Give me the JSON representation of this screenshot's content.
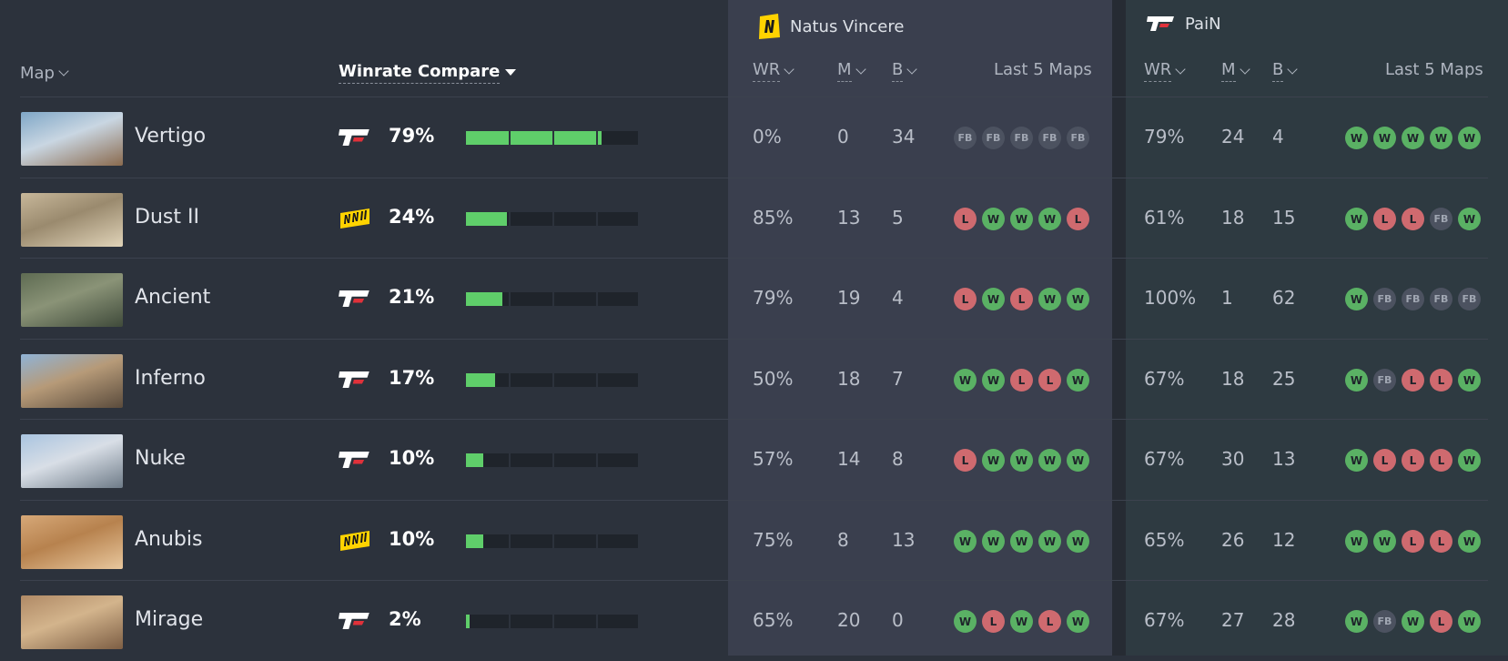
{
  "header": {
    "map_label": "Map",
    "winrate_compare_label": "Winrate Compare",
    "teams": [
      {
        "name": "Natus Vincere",
        "logo": "navi-logo",
        "columns": {
          "wr": "WR",
          "m": "M",
          "b": "B",
          "last5": "Last 5 Maps"
        }
      },
      {
        "name": "PaiN",
        "logo": "pain-logo",
        "columns": {
          "wr": "WR",
          "m": "M",
          "b": "B",
          "last5": "Last 5 Maps"
        }
      }
    ]
  },
  "colors": {
    "win": "#5ab164",
    "loss": "#cf6a6f",
    "bar_fill": "#5fce6a",
    "navi_yellow": "#ffd300"
  },
  "rows": [
    {
      "map": "Vertigo",
      "favored": "pain",
      "compare_pct": "79%",
      "compare_value": 79,
      "navi": {
        "wr": "0%",
        "m": "0",
        "b": "34",
        "last5": [
          "FB",
          "FB",
          "FB",
          "FB",
          "FB"
        ]
      },
      "pain": {
        "wr": "79%",
        "m": "24",
        "b": "4",
        "last5": [
          "W",
          "W",
          "W",
          "W",
          "W"
        ]
      }
    },
    {
      "map": "Dust II",
      "favored": "navi",
      "compare_pct": "24%",
      "compare_value": 24,
      "navi": {
        "wr": "85%",
        "m": "13",
        "b": "5",
        "last5": [
          "L",
          "W",
          "W",
          "W",
          "L"
        ]
      },
      "pain": {
        "wr": "61%",
        "m": "18",
        "b": "15",
        "last5": [
          "W",
          "L",
          "L",
          "FB",
          "W"
        ]
      }
    },
    {
      "map": "Ancient",
      "favored": "pain",
      "compare_pct": "21%",
      "compare_value": 21,
      "navi": {
        "wr": "79%",
        "m": "19",
        "b": "4",
        "last5": [
          "L",
          "W",
          "L",
          "W",
          "W"
        ]
      },
      "pain": {
        "wr": "100%",
        "m": "1",
        "b": "62",
        "last5": [
          "W",
          "FB",
          "FB",
          "FB",
          "FB"
        ]
      }
    },
    {
      "map": "Inferno",
      "favored": "pain",
      "compare_pct": "17%",
      "compare_value": 17,
      "navi": {
        "wr": "50%",
        "m": "18",
        "b": "7",
        "last5": [
          "W",
          "W",
          "L",
          "L",
          "W"
        ]
      },
      "pain": {
        "wr": "67%",
        "m": "18",
        "b": "25",
        "last5": [
          "W",
          "FB",
          "L",
          "L",
          "W"
        ]
      }
    },
    {
      "map": "Nuke",
      "favored": "pain",
      "compare_pct": "10%",
      "compare_value": 10,
      "navi": {
        "wr": "57%",
        "m": "14",
        "b": "8",
        "last5": [
          "L",
          "W",
          "W",
          "W",
          "W"
        ]
      },
      "pain": {
        "wr": "67%",
        "m": "30",
        "b": "13",
        "last5": [
          "W",
          "L",
          "L",
          "L",
          "W"
        ]
      }
    },
    {
      "map": "Anubis",
      "favored": "navi",
      "compare_pct": "10%",
      "compare_value": 10,
      "navi": {
        "wr": "75%",
        "m": "8",
        "b": "13",
        "last5": [
          "W",
          "W",
          "W",
          "W",
          "W"
        ]
      },
      "pain": {
        "wr": "65%",
        "m": "26",
        "b": "12",
        "last5": [
          "W",
          "W",
          "L",
          "L",
          "W"
        ]
      }
    },
    {
      "map": "Mirage",
      "favored": "pain",
      "compare_pct": "2%",
      "compare_value": 2,
      "navi": {
        "wr": "65%",
        "m": "20",
        "b": "0",
        "last5": [
          "W",
          "L",
          "W",
          "L",
          "W"
        ]
      },
      "pain": {
        "wr": "67%",
        "m": "27",
        "b": "28",
        "last5": [
          "W",
          "FB",
          "W",
          "L",
          "W"
        ]
      }
    }
  ]
}
